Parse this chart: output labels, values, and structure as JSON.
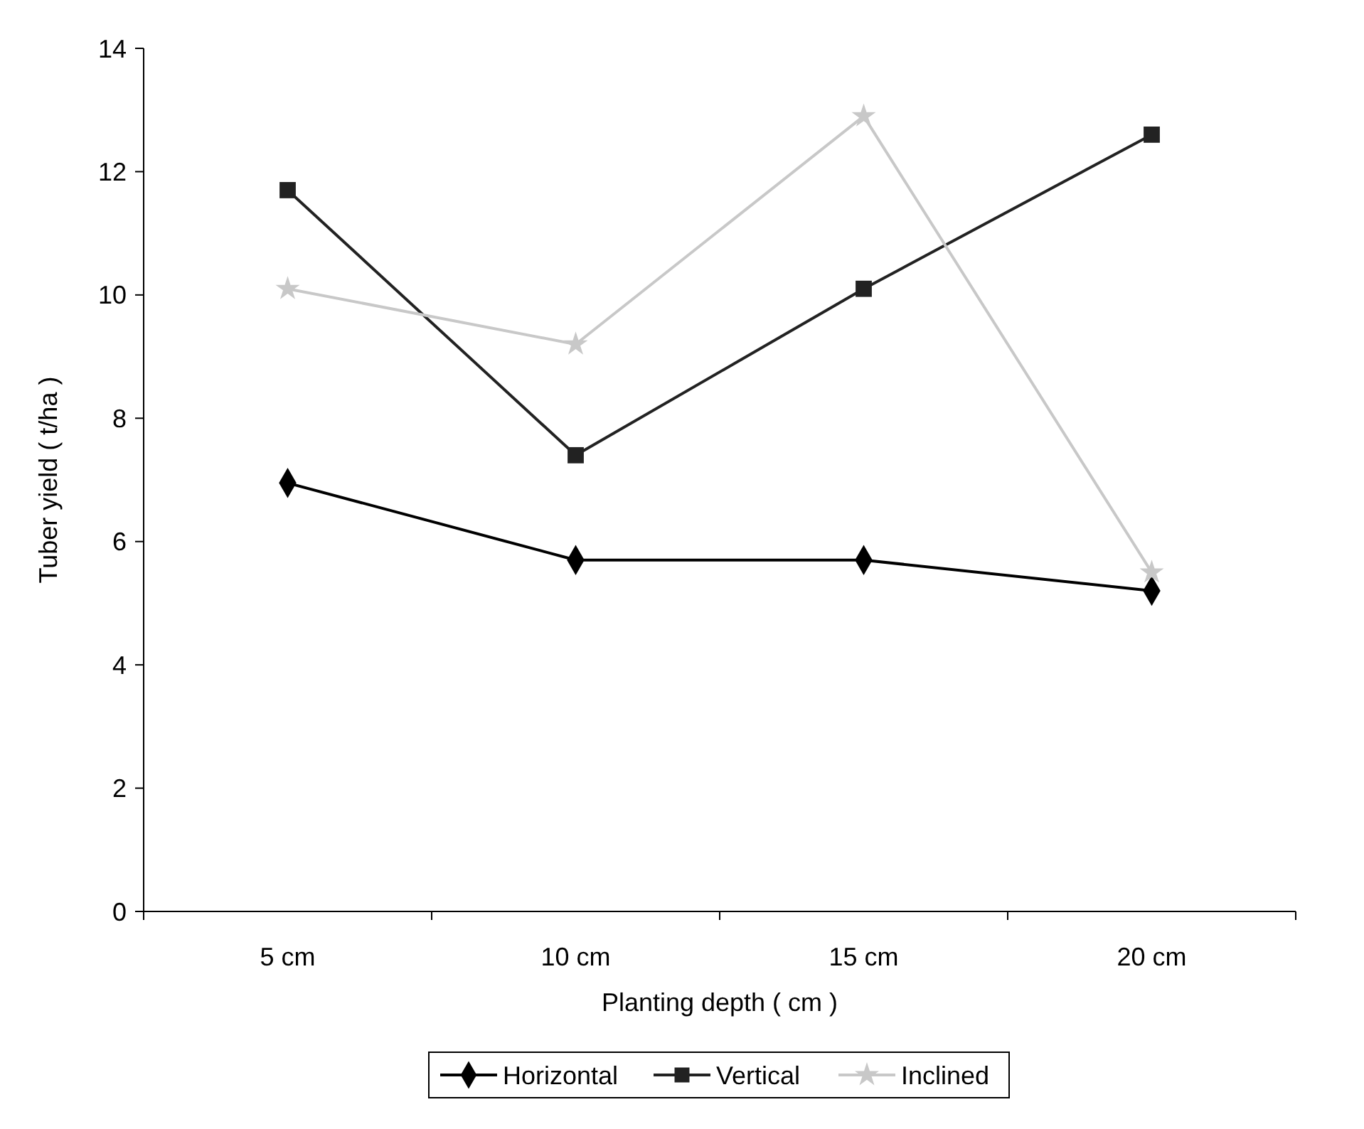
{
  "chart_data": {
    "type": "line",
    "xlabel": "Planting depth ( cm )",
    "ylabel": "Tuber yield ( t/ha )",
    "categories": [
      "5 cm",
      "10 cm",
      "15 cm",
      "20 cm"
    ],
    "ylim": [
      0,
      14
    ],
    "yticks": [
      0,
      2,
      4,
      6,
      8,
      10,
      12,
      14
    ],
    "grid": false,
    "legend": "bottom",
    "series": [
      {
        "name": "Horizontal",
        "color": "#000000",
        "marker": "diamond",
        "values": [
          6.95,
          5.7,
          5.7,
          5.2
        ]
      },
      {
        "name": "Vertical",
        "color": "#222222",
        "marker": "square",
        "values": [
          11.7,
          7.4,
          10.1,
          12.6
        ]
      },
      {
        "name": "Inclined",
        "color": "#c8c8c8",
        "marker": "star",
        "values": [
          10.1,
          9.2,
          12.9,
          5.5
        ]
      }
    ]
  }
}
